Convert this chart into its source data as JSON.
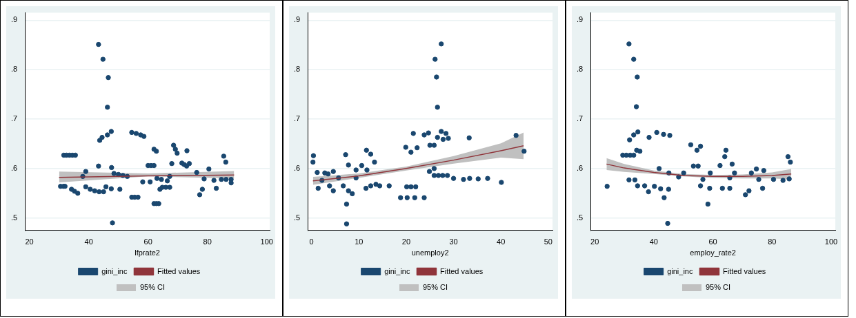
{
  "chart_data": [
    {
      "type": "scatter",
      "xlabel": "lfprate2",
      "xlim": [
        18.5,
        101
      ],
      "xticks": [
        20,
        40,
        60,
        80,
        100
      ],
      "ylim": [
        0.475,
        0.915
      ],
      "yticks": [
        {
          "value": 0.5,
          "label": ".5"
        },
        {
          "value": 0.6,
          "label": ".6"
        },
        {
          "value": 0.7,
          "label": ".7"
        },
        {
          "value": 0.8,
          "label": ".8"
        },
        {
          "value": 0.9,
          "label": ".9"
        }
      ],
      "grid": "y",
      "legend": "bottom",
      "marker": "circle",
      "series": [
        {
          "name": "gini_inc",
          "type": "scatter",
          "color": "#1a476f",
          "x": [
            43.3,
            44.8,
            46.6,
            46.3,
            47.6,
            46.3,
            44.5,
            43.7,
            31.6,
            32.5,
            33.5,
            34.5,
            35.5,
            30.5,
            31.5,
            32,
            34.2,
            35.2,
            36.3,
            38,
            39,
            43.3,
            39,
            40.5,
            42,
            43.5,
            45,
            45.8,
            47.7,
            47.6,
            50.5,
            48,
            48.5,
            50,
            51.5,
            53,
            54.5,
            55.5,
            56.6,
            54.5,
            56,
            57.5,
            58.6,
            60,
            61,
            62,
            62,
            62.8,
            62,
            62.8,
            63.6,
            58.2,
            60.7,
            64,
            64.8,
            66,
            67.3,
            63,
            64.5,
            66.5,
            68,
            67.3,
            68.6,
            69.2,
            69.8,
            71.4,
            72.2,
            73,
            73.1,
            73.9,
            76.4,
            77.4,
            78.3,
            78.9,
            80.5,
            82.2,
            83,
            85.5,
            86.2,
            84.7,
            86.3,
            88,
            88
          ],
          "values": [
            0.851,
            0.821,
            0.784,
            0.724,
            0.675,
            0.668,
            0.663,
            0.657,
            0.627,
            0.627,
            0.627,
            0.627,
            0.627,
            0.564,
            0.564,
            0.564,
            0.558,
            0.554,
            0.55,
            0.584,
            0.594,
            0.605,
            0.563,
            0.558,
            0.555,
            0.553,
            0.553,
            0.563,
            0.602,
            0.559,
            0.558,
            0.49,
            0.59,
            0.588,
            0.586,
            0.584,
            0.542,
            0.542,
            0.542,
            0.673,
            0.671,
            0.668,
            0.665,
            0.606,
            0.606,
            0.606,
            0.639,
            0.635,
            0.529,
            0.529,
            0.529,
            0.573,
            0.573,
            0.558,
            0.562,
            0.562,
            0.562,
            0.58,
            0.578,
            0.575,
            0.61,
            0.584,
            0.647,
            0.639,
            0.631,
            0.611,
            0.608,
            0.605,
            0.636,
            0.61,
            0.592,
            0.547,
            0.558,
            0.579,
            0.599,
            0.576,
            0.56,
            0.625,
            0.613,
            0.578,
            0.578,
            0.578,
            0.571
          ]
        },
        {
          "name": "Fitted values",
          "type": "line",
          "marker": "none",
          "color": "#90353b",
          "x": [
            30,
            60,
            89
          ],
          "values": [
            0.582,
            0.585,
            0.587
          ],
          "lower": [
            0.572,
            0.584,
            0.58
          ],
          "upper": [
            0.594,
            0.59,
            0.595
          ]
        }
      ],
      "annotations": [
        "95% CI"
      ]
    },
    {
      "type": "scatter",
      "xlabel": "unemploy2",
      "xlim": [
        -0.8,
        50.9
      ],
      "xticks": [
        0,
        10,
        20,
        30,
        40,
        50
      ],
      "ylim": [
        0.475,
        0.915
      ],
      "yticks": [
        {
          "value": 0.5,
          "label": ".5"
        },
        {
          "value": 0.6,
          "label": ".6"
        },
        {
          "value": 0.7,
          "label": ".7"
        },
        {
          "value": 0.8,
          "label": ".8"
        },
        {
          "value": 0.9,
          "label": ".9"
        }
      ],
      "grid": "y",
      "legend": "bottom",
      "marker": "circle",
      "series": [
        {
          "name": "gini_inc",
          "type": "scatter",
          "color": "#1a476f",
          "x": [
            27.4,
            26.1,
            26.4,
            26.6,
            27.4,
            26.6,
            21.5,
            23.8,
            24.7,
            19.9,
            21,
            22.3,
            25,
            25.9,
            28.4,
            27.8,
            28.9,
            33.3,
            43.2,
            44.9,
            24.9,
            25.9,
            25.9,
            26.8,
            27.7,
            28.7,
            30,
            32.1,
            33.4,
            35.2,
            37.2,
            40.1,
            20.1,
            21,
            22,
            18.8,
            20.2,
            21.8,
            23.8,
            14.4,
            16.4,
            11.6,
            12.5,
            13.3,
            10.6,
            7.2,
            7.8,
            7.4,
            7.4,
            7.8,
            8.6,
            0.4,
            0.3,
            1.2,
            1.4,
            2.8,
            3.5,
            4.6,
            4.6,
            5.7,
            6.7,
            9.4,
            9.4,
            11.5,
            11.7,
            12.5,
            13.6,
            2.2,
            3.8
          ],
          "values": [
            0.852,
            0.821,
            0.785,
            0.724,
            0.675,
            0.663,
            0.671,
            0.668,
            0.672,
            0.643,
            0.633,
            0.642,
            0.647,
            0.647,
            0.671,
            0.659,
            0.661,
            0.662,
            0.667,
            0.635,
            0.594,
            0.6,
            0.586,
            0.586,
            0.586,
            0.586,
            0.58,
            0.578,
            0.58,
            0.579,
            0.58,
            0.572,
            0.563,
            0.563,
            0.563,
            0.541,
            0.541,
            0.541,
            0.541,
            0.565,
            0.565,
            0.637,
            0.629,
            0.613,
            0.606,
            0.628,
            0.607,
            0.528,
            0.488,
            0.555,
            0.549,
            0.626,
            0.613,
            0.592,
            0.56,
            0.591,
            0.589,
            0.594,
            0.555,
            0.581,
            0.565,
            0.597,
            0.581,
            0.56,
            0.597,
            0.565,
            0.568,
            0.576,
            0.565
          ]
        },
        {
          "name": "Fitted values",
          "type": "line",
          "marker": "none",
          "color": "#90353b",
          "x": [
            0.3,
            10,
            20,
            30,
            40,
            44.8
          ],
          "values": [
            0.575,
            0.585,
            0.6,
            0.617,
            0.636,
            0.646
          ],
          "lower": [
            0.567,
            0.581,
            0.596,
            0.61,
            0.622,
            0.619
          ],
          "upper": [
            0.583,
            0.59,
            0.604,
            0.625,
            0.651,
            0.673
          ]
        }
      ],
      "annotations": [
        "95% CI"
      ]
    },
    {
      "type": "scatter",
      "xlabel": "employ_rate2",
      "xlim": [
        18.6,
        101.4
      ],
      "xticks": [
        20,
        40,
        60,
        80,
        100
      ],
      "ylim": [
        0.475,
        0.915
      ],
      "yticks": [
        {
          "value": 0.5,
          "label": ".5"
        },
        {
          "value": 0.6,
          "label": ".6"
        },
        {
          "value": 0.7,
          "label": ".7"
        },
        {
          "value": 0.8,
          "label": ".8"
        },
        {
          "value": 0.9,
          "label": ".9"
        }
      ],
      "grid": "y",
      "legend": "bottom",
      "marker": "circle",
      "series": [
        {
          "name": "gini_inc",
          "type": "scatter",
          "color": "#1a476f",
          "x": [
            31.6,
            33.2,
            34.4,
            34.1,
            34.6,
            31.8,
            33.2,
            29.5,
            30.7,
            32,
            33.2,
            34.2,
            35.3,
            38.4,
            41,
            43.3,
            45.4,
            24.2,
            31.6,
            33.6,
            34.5,
            36.9,
            38.2,
            40.2,
            41.8,
            42.3,
            43.5,
            44.7,
            45,
            45.1,
            48.4,
            50.1,
            52.5,
            54.6,
            55.8,
            53.4,
            55,
            55.8,
            58.3,
            58.9,
            56.6,
            59.1,
            62.4,
            64.4,
            64,
            63.2,
            65.7,
            66.5,
            67.3,
            65.7,
            71,
            72.2,
            73,
            74.7,
            76.8,
            77.2,
            75.5,
            80.5,
            83.7,
            85.4,
            86.2,
            85.8
          ],
          "values": [
            0.852,
            0.821,
            0.785,
            0.725,
            0.674,
            0.658,
            0.668,
            0.627,
            0.627,
            0.627,
            0.627,
            0.637,
            0.635,
            0.663,
            0.673,
            0.669,
            0.667,
            0.564,
            0.577,
            0.577,
            0.565,
            0.565,
            0.553,
            0.564,
            0.6,
            0.559,
            0.541,
            0.489,
            0.558,
            0.591,
            0.583,
            0.591,
            0.648,
            0.637,
            0.645,
            0.605,
            0.605,
            0.565,
            0.528,
            0.56,
            0.578,
            0.591,
            0.606,
            0.637,
            0.624,
            0.56,
            0.56,
            0.609,
            0.591,
            0.581,
            0.547,
            0.555,
            0.591,
            0.599,
            0.56,
            0.596,
            0.578,
            0.578,
            0.576,
            0.624,
            0.613,
            0.579
          ]
        },
        {
          "name": "Fitted values",
          "type": "line",
          "marker": "none",
          "color": "#90353b",
          "x": [
            24,
            30,
            40,
            50,
            60,
            70,
            80,
            86.5
          ],
          "values": [
            0.609,
            0.601,
            0.592,
            0.586,
            0.584,
            0.584,
            0.586,
            0.589
          ],
          "lower": [
            0.597,
            0.593,
            0.589,
            0.584,
            0.581,
            0.58,
            0.58,
            0.578
          ],
          "upper": [
            0.621,
            0.609,
            0.596,
            0.589,
            0.587,
            0.588,
            0.592,
            0.599
          ]
        }
      ],
      "annotations": [
        "95% CI"
      ]
    }
  ]
}
